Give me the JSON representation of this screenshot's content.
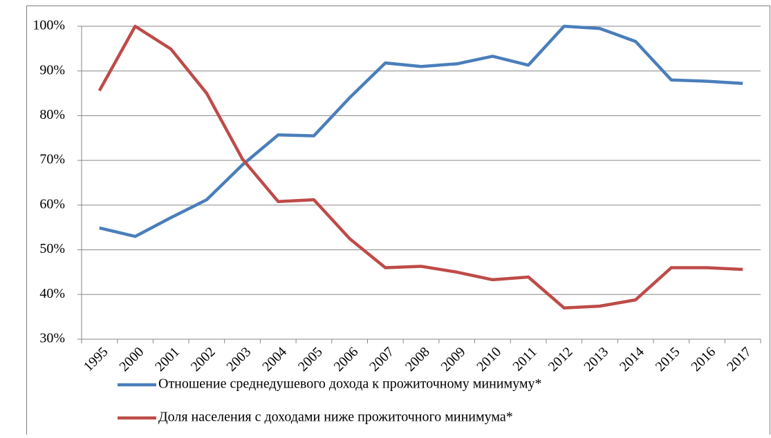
{
  "chart_data": {
    "type": "line",
    "categories": [
      "1995",
      "2000",
      "2001",
      "2002",
      "2003",
      "2004",
      "2005",
      "2006",
      "2007",
      "2008",
      "2009",
      "2010",
      "2011",
      "2012",
      "2013",
      "2014",
      "2015",
      "2016",
      "2017"
    ],
    "series": [
      {
        "name": "Отношение среднедушевого дохода к прожиточному минимуму*",
        "color": "#4a7ebb",
        "values": [
          54.9,
          53.0,
          57.2,
          61.2,
          69.0,
          75.7,
          75.5,
          84.0,
          91.8,
          91.0,
          91.6,
          93.3,
          91.3,
          100,
          99.5,
          96.6,
          88.0,
          87.7,
          87.2
        ]
      },
      {
        "name": "Доля населения с доходами ниже прожиточного минимума*",
        "color": "#be4b48",
        "values": [
          85.6,
          100,
          94.9,
          85.0,
          70.3,
          60.8,
          61.2,
          52.5,
          46.0,
          46.3,
          45.0,
          43.3,
          43.9,
          37.0,
          37.4,
          38.8,
          46.0,
          46.0,
          45.6
        ]
      }
    ],
    "ylim": [
      30,
      100
    ],
    "yticks": [
      {
        "value": 30,
        "label": "30%"
      },
      {
        "value": 40,
        "label": "40%"
      },
      {
        "value": 50,
        "label": "50%"
      },
      {
        "value": 60,
        "label": "60%"
      },
      {
        "value": 70,
        "label": "70%"
      },
      {
        "value": 80,
        "label": "80%"
      },
      {
        "value": 90,
        "label": "90%"
      },
      {
        "value": 100,
        "label": "100%"
      }
    ],
    "grid": true,
    "legend": "bottom"
  }
}
